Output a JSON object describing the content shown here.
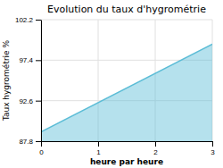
{
  "chart_data": {
    "type": "area",
    "title": "Evolution du taux d'hygrométrie",
    "xlabel": "heure par heure",
    "ylabel": "Taux hygrométrie %",
    "x": [
      0,
      3
    ],
    "values": [
      88.9,
      99.3
    ],
    "color": "#5bbcd6",
    "xlim": [
      0,
      3
    ],
    "xticks": [
      0,
      1,
      2,
      3
    ],
    "ylim": [
      87.8,
      102.2
    ],
    "yticks": [
      87.8,
      92.6,
      97.4,
      102.2
    ],
    "grid": true
  }
}
